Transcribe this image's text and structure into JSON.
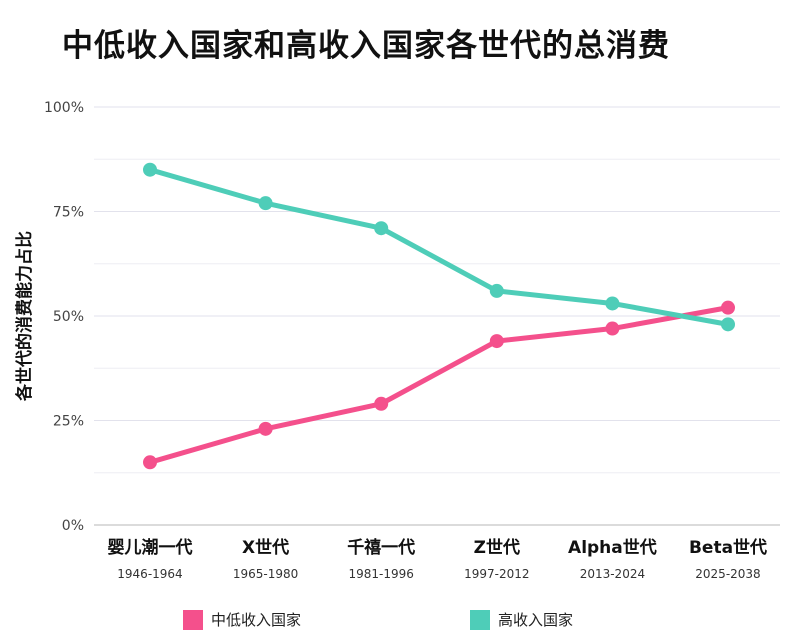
{
  "chart_data": {
    "type": "line",
    "title": "中低收入国家和高收入国家各世代的总消费",
    "ylabel": "各世代的消费能力占比",
    "xlabel": "",
    "ylim": [
      0,
      100
    ],
    "yticks": [
      0,
      25,
      50,
      75,
      100
    ],
    "ytick_labels": [
      "0%",
      "25%",
      "50%",
      "75%",
      "100%"
    ],
    "categories": [
      "婴儿潮一代",
      "X世代",
      "千禧一代",
      "Z世代",
      "Alpha世代",
      "Beta世代"
    ],
    "category_sublabels": [
      "1946-1964",
      "1965-1980",
      "1981-1996",
      "1997-2012",
      "2013-2024",
      "2025-2038"
    ],
    "grid": true,
    "legend_position": "bottom",
    "series": [
      {
        "name": "中低收入国家",
        "color": "#f4508c",
        "values": [
          15,
          23,
          29,
          44,
          47,
          52
        ]
      },
      {
        "name": "高收入国家",
        "color": "#4ecdb8",
        "values": [
          85,
          77,
          71,
          56,
          53,
          48
        ]
      }
    ]
  }
}
